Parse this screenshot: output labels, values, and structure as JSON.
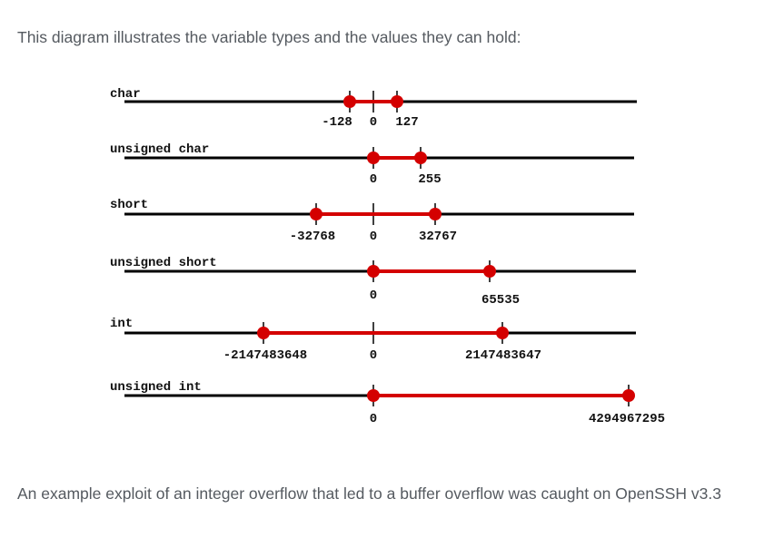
{
  "intro_text": "This diagram illustrates the variable types and the values they can hold:",
  "outro_text": "An example exploit of an integer overflow that led to a buffer overflow was caught on OpenSSH v3.3",
  "colors": {
    "axis": "#000000",
    "range": "#d40000",
    "text": "#555a60"
  },
  "rows": [
    {
      "name": "char",
      "min_label": "-128",
      "zero_label": "0",
      "max_label": "127"
    },
    {
      "name": "unsigned char",
      "min_label": "",
      "zero_label": "0",
      "max_label": "255"
    },
    {
      "name": "short",
      "min_label": "-32768",
      "zero_label": "0",
      "max_label": "32767"
    },
    {
      "name": "unsigned short",
      "min_label": "",
      "zero_label": "0",
      "max_label": "65535"
    },
    {
      "name": "int",
      "min_label": "-2147483648",
      "zero_label": "0",
      "max_label": "2147483647"
    },
    {
      "name": "unsigned int",
      "min_label": "",
      "zero_label": "0",
      "max_label": "4294967295"
    }
  ]
}
